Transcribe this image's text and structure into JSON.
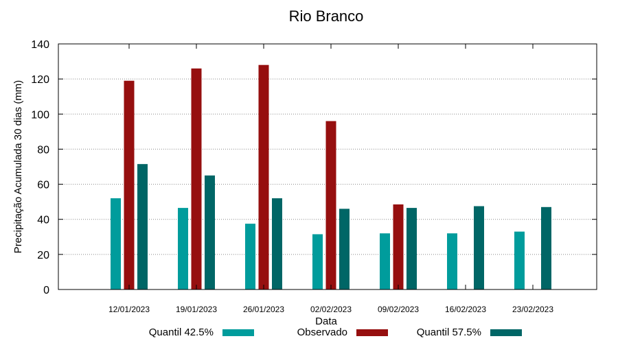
{
  "chart_data": {
    "type": "bar",
    "title": "Rio Branco",
    "xlabel": "Data",
    "ylabel": "Precipitação Acumulada 30 dias (mm)",
    "ylim": [
      0,
      140
    ],
    "yticks": [
      0,
      20,
      40,
      60,
      80,
      100,
      120,
      140
    ],
    "grid": true,
    "legend_position": "bottom",
    "categories": [
      "12/01/2023",
      "19/01/2023",
      "26/01/2023",
      "02/02/2023",
      "09/02/2023",
      "16/02/2023",
      "23/02/2023"
    ],
    "series": [
      {
        "name": "Quantil 42.5%",
        "color": "#009c9c",
        "values": [
          52,
          46.5,
          37.5,
          31.5,
          32,
          32,
          33
        ]
      },
      {
        "name": "Observado",
        "color": "#960f0f",
        "values": [
          119,
          126,
          128,
          96,
          48.5,
          null,
          null
        ]
      },
      {
        "name": "Quantil 57.5%",
        "color": "#006666",
        "values": [
          71.5,
          65,
          52,
          46,
          46.5,
          47.5,
          47
        ]
      }
    ]
  }
}
